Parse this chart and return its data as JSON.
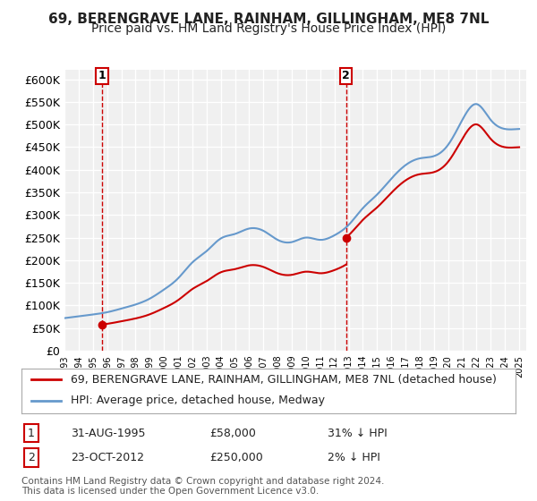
{
  "title": "69, BERENGRAVE LANE, RAINHAM, GILLINGHAM, ME8 7NL",
  "subtitle": "Price paid vs. HM Land Registry's House Price Index (HPI)",
  "xlabel": "",
  "ylabel": "",
  "ylim": [
    0,
    620000
  ],
  "yticks": [
    0,
    50000,
    100000,
    150000,
    200000,
    250000,
    300000,
    350000,
    400000,
    450000,
    500000,
    550000,
    600000
  ],
  "ytick_labels": [
    "£0",
    "£50K",
    "£100K",
    "£150K",
    "£200K",
    "£250K",
    "£300K",
    "£350K",
    "£400K",
    "£450K",
    "£500K",
    "£550K",
    "£600K"
  ],
  "background_color": "#ffffff",
  "plot_bg_color": "#f0f0f0",
  "grid_color": "#ffffff",
  "sale1_date": 1995.664,
  "sale1_price": 58000,
  "sale2_date": 2012.814,
  "sale2_price": 250000,
  "sale1_label": "1",
  "sale2_label": "2",
  "legend_line1": "69, BERENGRAVE LANE, RAINHAM, GILLINGHAM, ME8 7NL (detached house)",
  "legend_line2": "HPI: Average price, detached house, Medway",
  "note1_num": "1",
  "note1_date": "31-AUG-1995",
  "note1_price": "£58,000",
  "note1_hpi": "31% ↓ HPI",
  "note2_num": "2",
  "note2_date": "23-OCT-2012",
  "note2_price": "£250,000",
  "note2_hpi": "2% ↓ HPI",
  "footer": "Contains HM Land Registry data © Crown copyright and database right 2024.\nThis data is licensed under the Open Government Licence v3.0.",
  "hpi_years": [
    1993,
    1994,
    1995,
    1996,
    1997,
    1998,
    1999,
    2000,
    2001,
    2002,
    2003,
    2004,
    2005,
    2006,
    2007,
    2008,
    2009,
    2010,
    2011,
    2012,
    2013,
    2014,
    2015,
    2016,
    2017,
    2018,
    2019,
    2020,
    2021,
    2022,
    2023,
    2024,
    2025
  ],
  "hpi_values": [
    72000,
    76000,
    80000,
    85000,
    93000,
    102000,
    115000,
    135000,
    160000,
    195000,
    220000,
    248000,
    258000,
    270000,
    265000,
    245000,
    240000,
    250000,
    245000,
    255000,
    278000,
    315000,
    345000,
    380000,
    410000,
    425000,
    430000,
    455000,
    510000,
    545000,
    510000,
    490000,
    490000
  ],
  "sale_line_color": "#cc0000",
  "hpi_line_color": "#6699cc",
  "sale_marker_color": "#cc0000",
  "vline_color": "#cc0000",
  "title_fontsize": 11,
  "subtitle_fontsize": 10,
  "tick_fontsize": 9,
  "legend_fontsize": 9,
  "note_fontsize": 9
}
